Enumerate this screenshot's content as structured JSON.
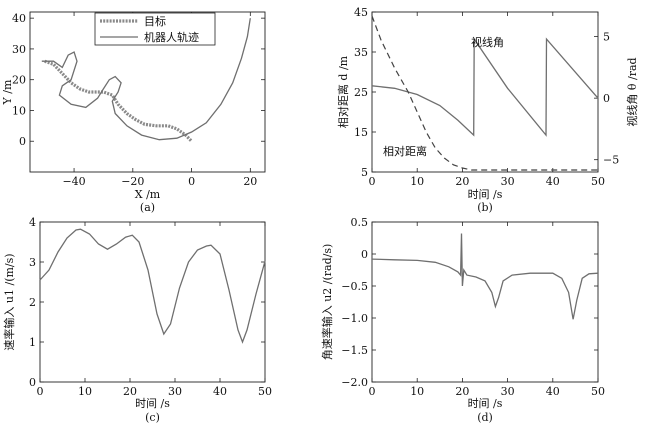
{
  "chart_data": [
    {
      "type": "line",
      "caption": "(a)",
      "xlabel": "X /m",
      "ylabel": "Y /m",
      "xlim": [
        -55,
        25
      ],
      "ylim": [
        -10,
        42
      ],
      "xticks": [
        "−40",
        "−20",
        "0",
        "20"
      ],
      "xtick_values": [
        -40,
        -20,
        0,
        20
      ],
      "yticks": [
        "0",
        "10",
        "20",
        "30",
        "40"
      ],
      "ytick_values": [
        0,
        10,
        20,
        30,
        40
      ],
      "legend_position": "top-left",
      "series": [
        {
          "name": "目标",
          "points": [
            [
              -50,
              26
            ],
            [
              -47,
              25
            ],
            [
              -44,
              22
            ],
            [
              -41,
              19
            ],
            [
              -38,
              17
            ],
            [
              -35,
              16
            ],
            [
              -30,
              16
            ],
            [
              -27,
              15
            ],
            [
              -25,
              12
            ],
            [
              -22,
              9
            ],
            [
              -19,
              7
            ],
            [
              -16,
              5.5
            ],
            [
              -12,
              5
            ],
            [
              -8,
              5
            ],
            [
              -5,
              4
            ],
            [
              -2,
              2
            ],
            [
              0,
              0
            ]
          ]
        },
        {
          "name": "机器人轨迹",
          "points": [
            [
              -51,
              26
            ],
            [
              -47,
              26
            ],
            [
              -44,
              24
            ],
            [
              -42,
              28
            ],
            [
              -40,
              29
            ],
            [
              -39,
              26
            ],
            [
              -41,
              20
            ],
            [
              -44,
              18
            ],
            [
              -45,
              15
            ],
            [
              -41,
              12
            ],
            [
              -36,
              11
            ],
            [
              -32,
              14
            ],
            [
              -30,
              17
            ],
            [
              -28,
              20
            ],
            [
              -26,
              21
            ],
            [
              -24,
              19
            ],
            [
              -25,
              16
            ],
            [
              -27,
              13
            ],
            [
              -26,
              9
            ],
            [
              -22,
              5
            ],
            [
              -17,
              2
            ],
            [
              -11,
              0.5
            ],
            [
              -5,
              1
            ],
            [
              0,
              3
            ],
            [
              5,
              6
            ],
            [
              10,
              12
            ],
            [
              14,
              19
            ],
            [
              17,
              27
            ],
            [
              19,
              34
            ],
            [
              20,
              40
            ]
          ]
        }
      ]
    },
    {
      "type": "line",
      "caption": "(b)",
      "xlabel": "时间 /s",
      "ylabel": "相对距离 d /m",
      "ylabel_right": "视线角 θ /rad",
      "xlim": [
        0,
        50
      ],
      "ylim": [
        5,
        45
      ],
      "ylim_right": [
        -6,
        7
      ],
      "xticks": [
        "0",
        "10",
        "20",
        "30",
        "40",
        "50"
      ],
      "xtick_values": [
        0,
        10,
        20,
        30,
        40,
        50
      ],
      "yticks": [
        "5",
        "15",
        "25",
        "35",
        "45"
      ],
      "ytick_values": [
        5,
        15,
        25,
        35,
        45
      ],
      "yticks_right": [
        "−5",
        "0",
        "5"
      ],
      "ytick_values_right": [
        -5,
        0,
        5
      ],
      "annotations": [
        "视线角",
        "相对距离"
      ],
      "series": [
        {
          "name": "视线角",
          "axis": "right",
          "points": [
            [
              0,
              1
            ],
            [
              5,
              0.8
            ],
            [
              10,
              0.3
            ],
            [
              15,
              -0.6
            ],
            [
              19,
              -1.8
            ],
            [
              22.5,
              -3
            ],
            [
              22.6,
              4.8
            ],
            [
              30,
              0.8
            ],
            [
              38.5,
              -3
            ],
            [
              38.6,
              4.8
            ],
            [
              50,
              0
            ]
          ]
        },
        {
          "name": "相对距离",
          "axis": "left",
          "points": [
            [
              0,
              44
            ],
            [
              2,
              38
            ],
            [
              5,
              31
            ],
            [
              8,
              25
            ],
            [
              10,
              20
            ],
            [
              12,
              15
            ],
            [
              14,
              11
            ],
            [
              16,
              8.5
            ],
            [
              18,
              6.8
            ],
            [
              20,
              6
            ],
            [
              22,
              5.5
            ],
            [
              30,
              5.5
            ],
            [
              40,
              5.5
            ],
            [
              50,
              5.5
            ]
          ]
        }
      ]
    },
    {
      "type": "line",
      "caption": "(c)",
      "xlabel": "时间 /s",
      "ylabel": "速率输入 u1 /(m/s)",
      "xlim": [
        0,
        50
      ],
      "ylim": [
        0,
        4
      ],
      "xticks": [
        "0",
        "10",
        "20",
        "30",
        "40",
        "50"
      ],
      "xtick_values": [
        0,
        10,
        20,
        30,
        40,
        50
      ],
      "yticks": [
        "0",
        "1",
        "2",
        "3",
        "4"
      ],
      "ytick_values": [
        0,
        1,
        2,
        3,
        4
      ],
      "series": [
        {
          "points": [
            [
              0,
              2.55
            ],
            [
              2,
              2.8
            ],
            [
              4,
              3.25
            ],
            [
              6,
              3.6
            ],
            [
              8,
              3.8
            ],
            [
              9,
              3.82
            ],
            [
              11,
              3.7
            ],
            [
              13,
              3.45
            ],
            [
              15,
              3.32
            ],
            [
              17,
              3.45
            ],
            [
              19,
              3.62
            ],
            [
              20.5,
              3.67
            ],
            [
              22,
              3.5
            ],
            [
              24,
              2.8
            ],
            [
              26,
              1.7
            ],
            [
              27.5,
              1.2
            ],
            [
              29,
              1.45
            ],
            [
              31,
              2.35
            ],
            [
              33,
              3.0
            ],
            [
              35,
              3.3
            ],
            [
              37,
              3.4
            ],
            [
              38,
              3.42
            ],
            [
              40,
              3.2
            ],
            [
              42,
              2.3
            ],
            [
              44,
              1.3
            ],
            [
              45,
              1.0
            ],
            [
              46,
              1.3
            ],
            [
              48,
              2.2
            ],
            [
              50,
              3.02
            ]
          ]
        }
      ]
    },
    {
      "type": "line",
      "caption": "(d)",
      "xlabel": "时间 /s",
      "ylabel": "角速率输入 u2 /(rad/s)",
      "xlim": [
        0,
        50
      ],
      "ylim": [
        -2.0,
        0.5
      ],
      "xticks": [
        "0",
        "10",
        "20",
        "30",
        "40",
        "50"
      ],
      "xtick_values": [
        0,
        10,
        20,
        30,
        40,
        50
      ],
      "yticks": [
        "−2.0",
        "−1.5",
        "−1.0",
        "−0.5",
        "0",
        "0.5"
      ],
      "ytick_values": [
        -2.0,
        -1.5,
        -1.0,
        -0.5,
        0,
        0.5
      ],
      "series": [
        {
          "points": [
            [
              0,
              -0.08
            ],
            [
              5,
              -0.09
            ],
            [
              10,
              -0.1
            ],
            [
              14,
              -0.13
            ],
            [
              17,
              -0.2
            ],
            [
              19,
              -0.28
            ],
            [
              19.6,
              -0.33
            ],
            [
              19.8,
              0.32
            ],
            [
              20.0,
              -0.5
            ],
            [
              20.3,
              -0.25
            ],
            [
              21,
              -0.33
            ],
            [
              23,
              -0.36
            ],
            [
              25,
              -0.42
            ],
            [
              26.5,
              -0.6
            ],
            [
              27.3,
              -0.82
            ],
            [
              28,
              -0.68
            ],
            [
              29,
              -0.42
            ],
            [
              31,
              -0.33
            ],
            [
              35,
              -0.3
            ],
            [
              40,
              -0.3
            ],
            [
              42,
              -0.38
            ],
            [
              43.5,
              -0.6
            ],
            [
              44.5,
              -1.02
            ],
            [
              45.3,
              -0.72
            ],
            [
              46.5,
              -0.38
            ],
            [
              48,
              -0.31
            ],
            [
              50,
              -0.3
            ]
          ]
        }
      ]
    }
  ]
}
